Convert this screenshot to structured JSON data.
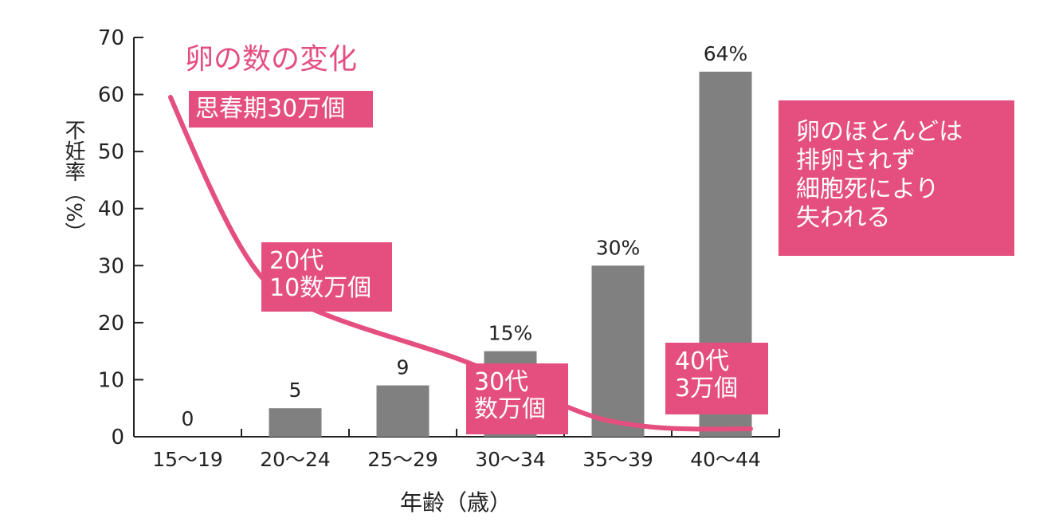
{
  "chart_data": {
    "type": "bar",
    "xlabel": "年齢（歳）",
    "ylabel": "不妊率（%）",
    "ylim": [
      0,
      70
    ],
    "yticks": [
      0,
      10,
      20,
      30,
      40,
      50,
      60,
      70
    ],
    "categories": [
      "15～19",
      "20～24",
      "25～29",
      "30～34",
      "35～39",
      "40～44"
    ],
    "values": [
      0,
      5,
      9,
      15,
      30,
      64
    ],
    "value_labels": [
      "0",
      "5",
      "9",
      "15%",
      "30%",
      "64%"
    ],
    "bar_color": "#808080",
    "grid": false,
    "overlay_curve": {
      "title": "卵の数の変化",
      "color": "#e44f7f",
      "labels": [
        "思春期30万個",
        "20代\n10数万個",
        "30代\n数万個",
        "40代\n3万個"
      ]
    }
  },
  "note": "卵のほとんどは\n排卵されず\n細胞死により\n失われる",
  "colors": {
    "accent": "#e44f7f",
    "bar": "#808080",
    "axis": "#222222"
  }
}
